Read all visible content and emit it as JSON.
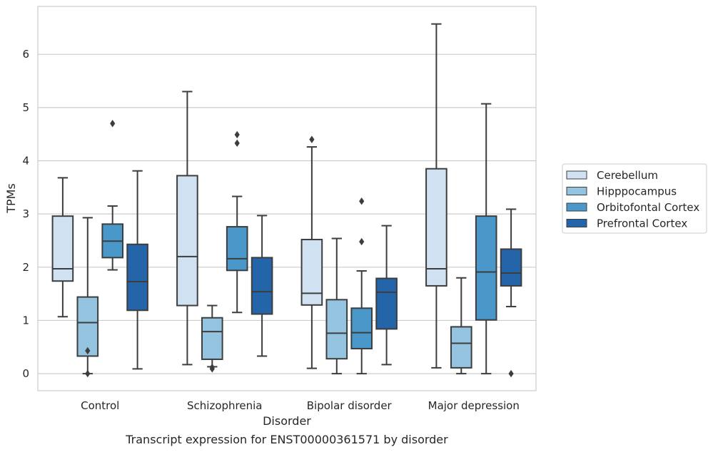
{
  "chart_data": {
    "type": "box",
    "title": "",
    "caption": "Transcript expression for ENST00000361571 by disorder",
    "xlabel": "Disorder",
    "ylabel": "TPMs",
    "ylim": [
      -0.32,
      6.9
    ],
    "yticks": [
      0,
      1,
      2,
      3,
      4,
      5,
      6
    ],
    "grid": true,
    "legend_position": "right",
    "categories": [
      "Control",
      "Schizophrenia",
      "Bipolar disorder",
      "Major depression"
    ],
    "series": [
      {
        "name": "Cerebellum",
        "color": "#d0e1f2",
        "boxes": [
          {
            "whisker_low": 1.07,
            "q1": 1.74,
            "median": 1.97,
            "q3": 2.96,
            "whisker_high": 3.68,
            "outliers": []
          },
          {
            "whisker_low": 0.17,
            "q1": 1.28,
            "median": 2.2,
            "q3": 3.72,
            "whisker_high": 5.3,
            "outliers": []
          },
          {
            "whisker_low": 0.1,
            "q1": 1.29,
            "median": 1.51,
            "q3": 2.52,
            "whisker_high": 4.26,
            "outliers": [
              4.4
            ]
          },
          {
            "whisker_low": 0.11,
            "q1": 1.65,
            "median": 1.97,
            "q3": 3.85,
            "whisker_high": 6.57,
            "outliers": []
          }
        ]
      },
      {
        "name": "Hipppocampus",
        "color": "#94c4df",
        "boxes": [
          {
            "whisker_low": 0.0,
            "q1": 0.33,
            "median": 0.96,
            "q3": 1.44,
            "whisker_high": 2.93,
            "outliers": [
              0.43,
              0.0
            ]
          },
          {
            "whisker_low": 0.13,
            "q1": 0.27,
            "median": 0.79,
            "q3": 1.05,
            "whisker_high": 1.28,
            "outliers": [
              0.12,
              0.09
            ]
          },
          {
            "whisker_low": 0.0,
            "q1": 0.28,
            "median": 0.76,
            "q3": 1.39,
            "whisker_high": 2.54,
            "outliers": []
          },
          {
            "whisker_low": 0.0,
            "q1": 0.11,
            "median": 0.57,
            "q3": 0.88,
            "whisker_high": 1.8,
            "outliers": []
          }
        ]
      },
      {
        "name": "Orbitofontal Cortex",
        "color": "#4a98c9",
        "boxes": [
          {
            "whisker_low": 1.95,
            "q1": 2.18,
            "median": 2.49,
            "q3": 2.81,
            "whisker_high": 3.15,
            "outliers": [
              4.7
            ]
          },
          {
            "whisker_low": 1.15,
            "q1": 1.94,
            "median": 2.16,
            "q3": 2.76,
            "whisker_high": 3.33,
            "outliers": [
              4.33,
              4.49
            ]
          },
          {
            "whisker_low": 0.0,
            "q1": 0.47,
            "median": 0.77,
            "q3": 1.23,
            "whisker_high": 1.93,
            "outliers": [
              2.48,
              3.24
            ]
          },
          {
            "whisker_low": 0.0,
            "q1": 1.01,
            "median": 1.91,
            "q3": 2.96,
            "whisker_high": 5.07,
            "outliers": []
          }
        ]
      },
      {
        "name": "Prefrontal Cortex",
        "color": "#2464a8",
        "boxes": [
          {
            "whisker_low": 0.09,
            "q1": 1.19,
            "median": 1.73,
            "q3": 2.43,
            "whisker_high": 3.81,
            "outliers": []
          },
          {
            "whisker_low": 0.33,
            "q1": 1.12,
            "median": 1.54,
            "q3": 2.18,
            "whisker_high": 2.97,
            "outliers": []
          },
          {
            "whisker_low": 0.17,
            "q1": 0.84,
            "median": 1.53,
            "q3": 1.79,
            "whisker_high": 2.78,
            "outliers": []
          },
          {
            "whisker_low": 1.26,
            "q1": 1.65,
            "median": 1.89,
            "q3": 2.34,
            "whisker_high": 3.09,
            "outliers": [
              0.0
            ]
          }
        ]
      }
    ]
  }
}
